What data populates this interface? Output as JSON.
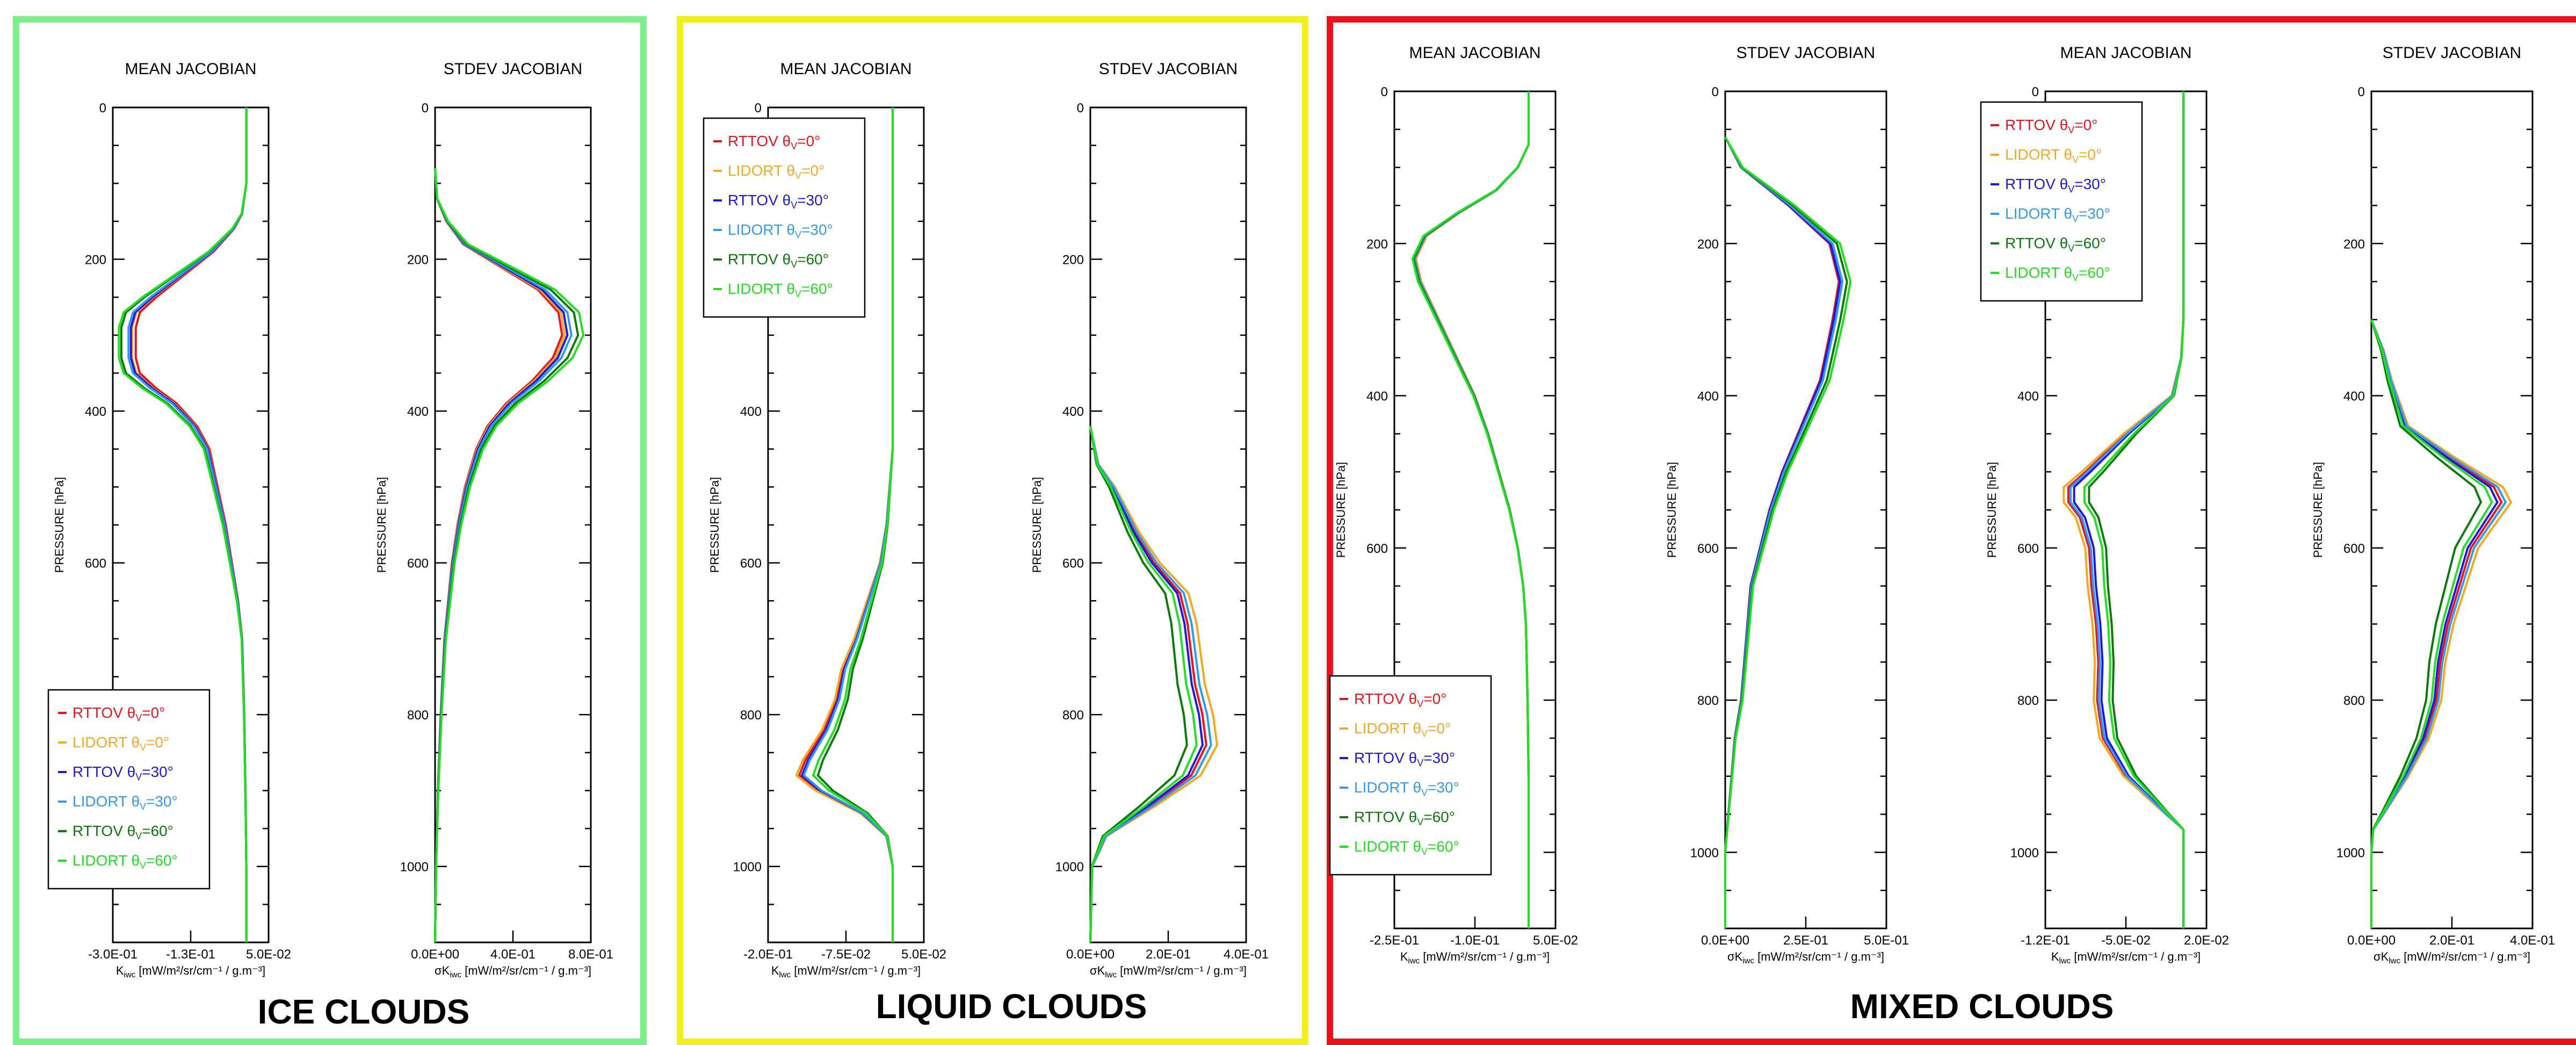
{
  "panels": [
    {
      "id": "ice",
      "title": "ICE CLOUDS",
      "border_color": "#7cf08a"
    },
    {
      "id": "liquid",
      "title": "LIQUID CLOUDS",
      "border_color": "#f2ee1d"
    },
    {
      "id": "mixed",
      "title": "MIXED CLOUDS",
      "border_color": "#e8141c"
    }
  ],
  "legend_entries": [
    {
      "model": "RTTOV",
      "angle": "0°",
      "color": "#e8141c"
    },
    {
      "model": "LIDORT",
      "angle": "0°",
      "color": "#f5a623"
    },
    {
      "model": "RTTOV",
      "angle": "30°",
      "color": "#1a1adc"
    },
    {
      "model": "LIDORT",
      "angle": "30°",
      "color": "#3399ee"
    },
    {
      "model": "RTTOV",
      "angle": "60°",
      "color": "#0a7a0a"
    },
    {
      "model": "LIDORT",
      "angle": "60°",
      "color": "#22dd22"
    }
  ],
  "chart_data": [
    {
      "type": "line",
      "panel": "ice",
      "title": "MEAN JACOBIAN",
      "xlabel": "K",
      "xlabel_sub": "iwc",
      "xlabel_units": " [mW/m²/sr/cm⁻¹ / g.m⁻³]",
      "ylabel": "PRESSURE [hPa]",
      "xlim": [
        -0.3,
        0.05
      ],
      "ylim": [
        0,
        1100
      ],
      "xticks": [
        "-3.0E-01",
        "-1.3E-01",
        "5.0E-02"
      ],
      "yticks": [
        0,
        200,
        400,
        600,
        800,
        1000
      ],
      "legend": "bottom-left",
      "base": {
        "p": [
          0,
          100,
          140,
          160,
          190,
          220,
          250,
          270,
          290,
          310,
          330,
          350,
          370,
          390,
          420,
          450,
          500,
          550,
          600,
          650,
          700,
          800,
          900,
          1000,
          1100
        ],
        "v": [
          0.0,
          0.0,
          -0.01,
          -0.03,
          -0.08,
          -0.15,
          -0.22,
          -0.26,
          -0.27,
          -0.27,
          -0.27,
          -0.26,
          -0.22,
          -0.17,
          -0.12,
          -0.09,
          -0.07,
          -0.05,
          -0.035,
          -0.02,
          -0.01,
          -0.005,
          -0.002,
          0.0,
          0.0
        ]
      },
      "series": [
        {
          "name": "RTTOV θv=0°",
          "scale": 0.92
        },
        {
          "name": "LIDORT θv=0°",
          "scale": 0.95
        },
        {
          "name": "RTTOV θv=30°",
          "scale": 0.96
        },
        {
          "name": "LIDORT θv=30°",
          "scale": 0.98
        },
        {
          "name": "RTTOV θv=60°",
          "scale": 1.04
        },
        {
          "name": "LIDORT θv=60°",
          "scale": 1.06
        }
      ]
    },
    {
      "type": "line",
      "panel": "ice",
      "title": "STDEV JACOBIAN",
      "xlabel": "σK",
      "xlabel_sub": "iwc",
      "xlabel_units": " [mW/m²/sr/cm⁻¹ / g.m⁻³]",
      "ylabel": "PRESSURE [hPa]",
      "xlim": [
        0,
        0.8
      ],
      "ylim": [
        0,
        1100
      ],
      "xticks": [
        "0.0E+00",
        "4.0E-01",
        "8.0E-01"
      ],
      "yticks": [
        0,
        200,
        400,
        600,
        800,
        1000
      ],
      "base": {
        "p": [
          80,
          120,
          150,
          180,
          210,
          240,
          270,
          300,
          330,
          360,
          390,
          420,
          450,
          500,
          550,
          600,
          650,
          700,
          800,
          900,
          1000,
          1100
        ],
        "v": [
          0.0,
          0.01,
          0.06,
          0.15,
          0.35,
          0.55,
          0.66,
          0.68,
          0.63,
          0.52,
          0.38,
          0.28,
          0.22,
          0.16,
          0.12,
          0.09,
          0.07,
          0.05,
          0.03,
          0.015,
          0.005,
          0.0
        ]
      },
      "series": [
        {
          "name": "RTTOV θv=0°",
          "scale": 0.96
        },
        {
          "name": "LIDORT θv=0°",
          "scale": 0.98
        },
        {
          "name": "RTTOV θv=30°",
          "scale": 1.0
        },
        {
          "name": "LIDORT θv=30°",
          "scale": 1.03
        },
        {
          "name": "RTTOV θv=60°",
          "scale": 1.08
        },
        {
          "name": "LIDORT θv=60°",
          "scale": 1.12
        }
      ]
    },
    {
      "type": "line",
      "panel": "liquid",
      "title": "MEAN JACOBIAN",
      "xlabel": "K",
      "xlabel_sub": "lwc",
      "xlabel_units": " [mW/m²/sr/cm⁻¹ / g.m⁻³]",
      "ylabel": "PRESSURE [hPa]",
      "xlim": [
        -0.2,
        0.05
      ],
      "ylim": [
        0,
        1100
      ],
      "xticks": [
        "-2.0E-01",
        "-7.5E-02",
        "5.0E-02"
      ],
      "yticks": [
        0,
        200,
        400,
        600,
        800,
        1000
      ],
      "legend": "top-left",
      "base": {
        "p": [
          0,
          450,
          500,
          550,
          600,
          650,
          700,
          740,
          780,
          820,
          860,
          880,
          900,
          930,
          960,
          1000,
          1100
        ],
        "v": [
          0.0,
          0.0,
          -0.005,
          -0.01,
          -0.02,
          -0.04,
          -0.06,
          -0.08,
          -0.09,
          -0.11,
          -0.14,
          -0.15,
          -0.12,
          -0.05,
          -0.01,
          0.0,
          0.0
        ]
      },
      "series": [
        {
          "name": "RTTOV θv=0°",
          "scale": 1.0
        },
        {
          "name": "LIDORT θv=0°",
          "scale": 1.03
        },
        {
          "name": "RTTOV θv=30°",
          "scale": 0.97
        },
        {
          "name": "LIDORT θv=30°",
          "scale": 0.95
        },
        {
          "name": "RTTOV θv=60°",
          "scale": 0.8
        },
        {
          "name": "LIDORT θv=60°",
          "scale": 0.85
        }
      ]
    },
    {
      "type": "line",
      "panel": "liquid",
      "title": "STDEV JACOBIAN",
      "xlabel": "σK",
      "xlabel_sub": "lwc",
      "xlabel_units": " [mW/m²/sr/cm⁻¹ / g.m⁻³]",
      "ylabel": "PRESSURE [hPa]",
      "xlim": [
        0,
        0.4
      ],
      "ylim": [
        0,
        1100
      ],
      "xticks": [
        "0.0E+00",
        "2.0E-01",
        "4.0E-01"
      ],
      "yticks": [
        0,
        200,
        400,
        600,
        800,
        1000
      ],
      "base": {
        "p": [
          420,
          470,
          500,
          530,
          560,
          600,
          640,
          680,
          720,
          760,
          800,
          840,
          880,
          920,
          960,
          1000,
          1100
        ],
        "v": [
          0.0,
          0.02,
          0.06,
          0.09,
          0.12,
          0.17,
          0.24,
          0.26,
          0.27,
          0.28,
          0.3,
          0.31,
          0.27,
          0.16,
          0.04,
          0.005,
          0.0
        ]
      },
      "series": [
        {
          "name": "RTTOV θv=0°",
          "scale": 0.96
        },
        {
          "name": "LIDORT θv=0°",
          "scale": 1.05
        },
        {
          "name": "RTTOV θv=30°",
          "scale": 0.93
        },
        {
          "name": "LIDORT θv=30°",
          "scale": 1.0
        },
        {
          "name": "RTTOV θv=60°",
          "scale": 0.8
        },
        {
          "name": "LIDORT θv=60°",
          "scale": 0.88
        }
      ]
    },
    {
      "type": "line",
      "panel": "mixed",
      "title": "MEAN JACOBIAN",
      "xlabel": "K",
      "xlabel_sub": "iwc",
      "xlabel_units": " [mW/m²/sr/cm⁻¹ / g.m⁻³]",
      "ylabel": "PRESSURE [hPa]",
      "xlim": [
        -0.25,
        0.05
      ],
      "ylim": [
        0,
        1100
      ],
      "xticks": [
        "-2.5E-01",
        "-1.0E-01",
        "5.0E-02"
      ],
      "yticks": [
        0,
        200,
        400,
        600,
        800,
        1000
      ],
      "legend": "bottom-left",
      "base": {
        "p": [
          0,
          70,
          100,
          130,
          160,
          190,
          220,
          250,
          280,
          310,
          340,
          370,
          400,
          450,
          500,
          550,
          600,
          650,
          700,
          800,
          900,
          1000,
          1100
        ],
        "v": [
          0.0,
          0.0,
          -0.02,
          -0.06,
          -0.13,
          -0.19,
          -0.21,
          -0.2,
          -0.18,
          -0.16,
          -0.14,
          -0.12,
          -0.1,
          -0.075,
          -0.055,
          -0.035,
          -0.02,
          -0.01,
          -0.005,
          -0.002,
          0.0,
          0.0,
          0.0
        ]
      },
      "series": [
        {
          "name": "RTTOV θv=0°",
          "scale": 1.0
        },
        {
          "name": "LIDORT θv=0°",
          "scale": 1.0
        },
        {
          "name": "RTTOV θv=30°",
          "scale": 1.01
        },
        {
          "name": "LIDORT θv=30°",
          "scale": 1.01
        },
        {
          "name": "RTTOV θv=60°",
          "scale": 1.02
        },
        {
          "name": "LIDORT θv=60°",
          "scale": 1.03
        }
      ]
    },
    {
      "type": "line",
      "panel": "mixed",
      "title": "STDEV JACOBIAN",
      "xlabel": "σK",
      "xlabel_sub": "iwc",
      "xlabel_units": " [mW/m²/sr/cm⁻¹ / g.m⁻³]",
      "ylabel": "PRESSURE [hPa]",
      "xlim": [
        0,
        0.5
      ],
      "ylim": [
        0,
        1100
      ],
      "xticks": [
        "0.0E+00",
        "2.5E-01",
        "5.0E-01"
      ],
      "yticks": [
        0,
        200,
        400,
        600,
        800,
        1000
      ],
      "base": {
        "p": [
          60,
          100,
          150,
          200,
          250,
          300,
          340,
          380,
          420,
          460,
          500,
          550,
          600,
          650,
          700,
          750,
          800,
          850,
          900,
          950,
          1000,
          1100
        ],
        "v": [
          0.0,
          0.05,
          0.2,
          0.33,
          0.36,
          0.34,
          0.32,
          0.3,
          0.26,
          0.22,
          0.18,
          0.14,
          0.11,
          0.08,
          0.07,
          0.06,
          0.05,
          0.03,
          0.02,
          0.01,
          0.0,
          0.0
        ]
      },
      "series": [
        {
          "name": "RTTOV θv=0°",
          "scale": 0.98
        },
        {
          "name": "LIDORT θv=0°",
          "scale": 1.0
        },
        {
          "name": "RTTOV θv=30°",
          "scale": 0.99
        },
        {
          "name": "LIDORT θv=30°",
          "scale": 1.01
        },
        {
          "name": "RTTOV θv=60°",
          "scale": 1.05
        },
        {
          "name": "LIDORT θv=60°",
          "scale": 1.08
        }
      ]
    },
    {
      "type": "line",
      "panel": "mixed",
      "title": "MEAN JACOBIAN",
      "xlabel": "K",
      "xlabel_sub": "lwc",
      "xlabel_units": " [mW/m²/sr/cm⁻¹ / g.m⁻³]",
      "ylabel": "PRESSURE [hPa]",
      "xlim": [
        -0.12,
        0.02
      ],
      "ylim": [
        0,
        1100
      ],
      "xticks": [
        "-1.2E-01",
        "-5.0E-02",
        "2.0E-02"
      ],
      "yticks": [
        0,
        200,
        400,
        600,
        800,
        1000
      ],
      "legend": "top-left",
      "base": {
        "p": [
          0,
          300,
          350,
          400,
          450,
          500,
          520,
          540,
          560,
          600,
          650,
          700,
          750,
          800,
          850,
          900,
          950,
          970,
          1000,
          1100
        ],
        "v": [
          0.0,
          0.0,
          -0.002,
          -0.01,
          -0.05,
          -0.085,
          -0.1,
          -0.1,
          -0.09,
          -0.082,
          -0.08,
          -0.076,
          -0.074,
          -0.075,
          -0.07,
          -0.05,
          -0.015,
          0.0,
          0.0,
          0.0
        ]
      },
      "series": [
        {
          "name": "RTTOV θv=0°",
          "scale": 1.0
        },
        {
          "name": "LIDORT θv=0°",
          "scale": 1.04
        },
        {
          "name": "RTTOV θv=30°",
          "scale": 0.95
        },
        {
          "name": "LIDORT θv=30°",
          "scale": 0.98
        },
        {
          "name": "RTTOV θv=60°",
          "scale": 0.82
        },
        {
          "name": "LIDORT θv=60°",
          "scale": 0.86
        }
      ]
    },
    {
      "type": "line",
      "panel": "mixed",
      "title": "STDEV JACOBIAN",
      "xlabel": "σK",
      "xlabel_sub": "lwc",
      "xlabel_units": " [mW/m²/sr/cm⁻¹ / g.m⁻³]",
      "ylabel": "PRESSURE [hPa]",
      "xlim": [
        0,
        0.4
      ],
      "ylim": [
        0,
        1100
      ],
      "xticks": [
        "0.0E+00",
        "2.0E-01",
        "4.0E-01"
      ],
      "yticks": [
        0,
        200,
        400,
        600,
        800,
        1000
      ],
      "base": {
        "p": [
          300,
          340,
          380,
          410,
          440,
          480,
          520,
          540,
          570,
          600,
          650,
          700,
          750,
          800,
          850,
          900,
          950,
          970,
          1000,
          1100
        ],
        "v": [
          0.0,
          0.03,
          0.05,
          0.07,
          0.09,
          0.2,
          0.32,
          0.34,
          0.3,
          0.26,
          0.23,
          0.2,
          0.18,
          0.17,
          0.14,
          0.09,
          0.03,
          0.005,
          0.0,
          0.0
        ]
      },
      "series": [
        {
          "name": "RTTOV θv=0°",
          "scale": 0.95
        },
        {
          "name": "LIDORT θv=0°",
          "scale": 1.02
        },
        {
          "name": "RTTOV θv=30°",
          "scale": 0.92
        },
        {
          "name": "LIDORT θv=30°",
          "scale": 0.98
        },
        {
          "name": "RTTOV θv=60°",
          "scale": 0.8
        },
        {
          "name": "LIDORT θv=60°",
          "scale": 0.88
        }
      ]
    }
  ]
}
